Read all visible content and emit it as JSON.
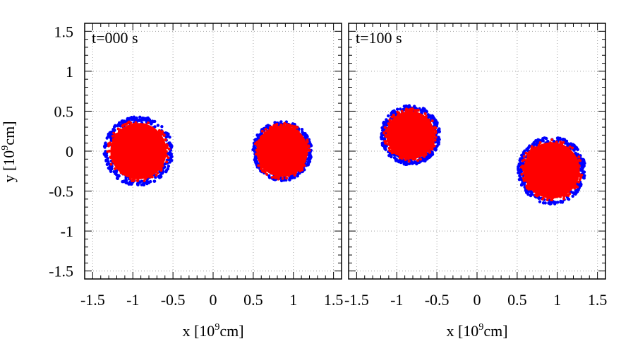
{
  "chart_data": [
    {
      "type": "scatter",
      "title": "",
      "annotation": "t=000 s",
      "xlabel": "x [10^9cm]",
      "ylabel": "y [10^9cm]",
      "xlim": [
        -1.6,
        1.6
      ],
      "ylim": [
        -1.6,
        1.6
      ],
      "xticks": [
        -1.5,
        -1,
        -0.5,
        0,
        0.5,
        1,
        1.5
      ],
      "yticks": [
        -1.5,
        -1,
        -0.5,
        0,
        0.5,
        1,
        1.5
      ],
      "x_tick_labels": [
        "-1.5",
        "-1",
        "-0.5",
        "0",
        "0.5",
        "1",
        "1.5"
      ],
      "y_tick_labels": [
        "-1.5",
        "-1",
        "-0.5",
        "0",
        "0.5",
        "1",
        "1.5"
      ],
      "grid": true,
      "stars": [
        {
          "cx": -0.93,
          "cy": 0.0,
          "core_radius": 0.35,
          "halo_radius": 0.43,
          "core_color": "#ff0000",
          "halo_color": "#0000ff"
        },
        {
          "cx": 0.86,
          "cy": 0.0,
          "core_radius": 0.32,
          "halo_radius": 0.37,
          "core_color": "#ff0000",
          "halo_color": "#0000ff"
        }
      ]
    },
    {
      "type": "scatter",
      "title": "",
      "annotation": "t=100 s",
      "xlabel": "x [10^9cm]",
      "ylabel": "",
      "xlim": [
        -1.6,
        1.6
      ],
      "ylim": [
        -1.6,
        1.6
      ],
      "xticks": [
        -1.5,
        -1,
        -0.5,
        0,
        0.5,
        1,
        1.5
      ],
      "yticks": [
        -1.5,
        -1,
        -0.5,
        0,
        0.5,
        1,
        1.5
      ],
      "x_tick_labels": [
        "-1.5",
        "-1",
        "-0.5",
        "0",
        "0.5",
        "1",
        "1.5"
      ],
      "y_tick_labels": [],
      "grid": true,
      "stars": [
        {
          "cx": -0.83,
          "cy": 0.2,
          "core_radius": 0.3,
          "halo_radius": 0.37,
          "core_color": "#ff0000",
          "halo_color": "#0000ff"
        },
        {
          "cx": 0.93,
          "cy": -0.24,
          "core_radius": 0.35,
          "halo_radius": 0.42,
          "core_color": "#ff0000",
          "halo_color": "#0000ff"
        }
      ]
    }
  ],
  "labels": {
    "ylabel_main": "y [10",
    "ylabel_sup": "9",
    "ylabel_tail": "cm]",
    "xlabel_main": "x [10",
    "xlabel_sup": "9",
    "xlabel_tail": "cm]"
  }
}
